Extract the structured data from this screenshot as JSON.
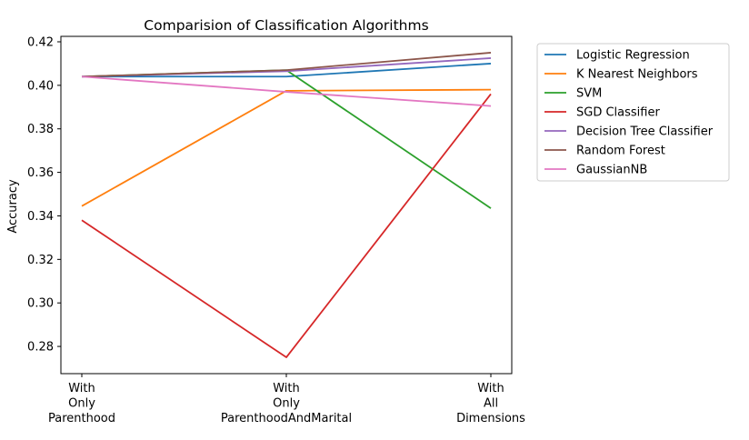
{
  "chart_data": {
    "type": "line",
    "title": "Comparision of Classification Algorithms",
    "xlabel": "",
    "ylabel": "Accuracy",
    "categories": [
      [
        "With",
        "Only",
        "Parenthood"
      ],
      [
        "With",
        "Only",
        "ParenthoodAndMarital"
      ],
      [
        "With",
        "All",
        "Dimensions"
      ]
    ],
    "ylim": [
      0.2675,
      0.4225
    ],
    "yticks": [
      0.28,
      0.3,
      0.32,
      0.34,
      0.36,
      0.38,
      0.4,
      0.42
    ],
    "ytick_labels": [
      "0.28",
      "0.30",
      "0.32",
      "0.34",
      "0.36",
      "0.38",
      "0.40",
      "0.42"
    ],
    "grid": false,
    "legend_position": "outside-top-right",
    "series": [
      {
        "name": "Logistic Regression",
        "color": "#1f77b4",
        "values": [
          0.404,
          0.404,
          0.41
        ]
      },
      {
        "name": "K Nearest Neighbors",
        "color": "#ff7f0e",
        "values": [
          0.3445,
          0.3975,
          0.398
        ]
      },
      {
        "name": "SVM",
        "color": "#2ca02c",
        "values": [
          0.404,
          0.407,
          0.3435
        ]
      },
      {
        "name": "SGD Classifier",
        "color": "#d62728",
        "values": [
          0.338,
          0.275,
          0.396
        ]
      },
      {
        "name": "Decision Tree Classifier",
        "color": "#9467bd",
        "values": [
          0.404,
          0.4065,
          0.4125
        ]
      },
      {
        "name": "Random Forest",
        "color": "#8c564b",
        "values": [
          0.404,
          0.407,
          0.415
        ]
      },
      {
        "name": "GaussianNB",
        "color": "#e377c2",
        "values": [
          0.404,
          0.397,
          0.3905
        ]
      }
    ]
  }
}
